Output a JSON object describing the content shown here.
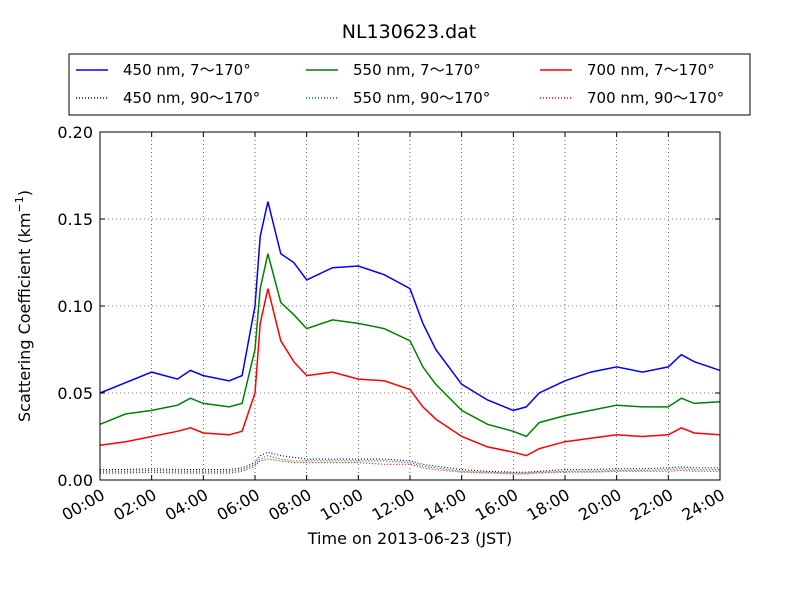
{
  "chart_data": {
    "type": "line",
    "title": "NL130623.dat",
    "xlabel": "Time on 2013-06-23 (JST)",
    "ylabel": "Scattering Coefficient (km",
    "ylabel_sup": "−1",
    "ylabel_close": ")",
    "xlim": [
      "00:00",
      "24:00"
    ],
    "ylim": [
      0.0,
      0.2
    ],
    "grid": true,
    "legend_position": "top",
    "x_ticks": [
      "00:00",
      "02:00",
      "04:00",
      "06:00",
      "08:00",
      "10:00",
      "12:00",
      "14:00",
      "16:00",
      "18:00",
      "20:00",
      "22:00",
      "24:00"
    ],
    "y_ticks": [
      "0.00",
      "0.05",
      "0.10",
      "0.15",
      "0.20"
    ],
    "x_hours": [
      0,
      1,
      2,
      3,
      3.5,
      4,
      5,
      5.5,
      6,
      6.2,
      6.5,
      7,
      7.5,
      8,
      9,
      10,
      11,
      12,
      12.5,
      13,
      14,
      15,
      16,
      16.5,
      17,
      18,
      19,
      20,
      21,
      22,
      22.5,
      23,
      24
    ],
    "series": [
      {
        "name": "450 nm, 7～170°",
        "color": "#0000ff",
        "style": "solid",
        "values": [
          0.05,
          0.056,
          0.062,
          0.058,
          0.063,
          0.06,
          0.057,
          0.06,
          0.1,
          0.14,
          0.16,
          0.13,
          0.125,
          0.115,
          0.122,
          0.123,
          0.118,
          0.11,
          0.09,
          0.075,
          0.055,
          0.046,
          0.04,
          0.042,
          0.05,
          0.057,
          0.062,
          0.065,
          0.062,
          0.065,
          0.072,
          0.068,
          0.063
        ]
      },
      {
        "name": "550 nm, 7～170°",
        "color": "#008000",
        "style": "solid",
        "values": [
          0.032,
          0.038,
          0.04,
          0.043,
          0.047,
          0.044,
          0.042,
          0.044,
          0.075,
          0.11,
          0.13,
          0.102,
          0.095,
          0.087,
          0.092,
          0.09,
          0.087,
          0.08,
          0.065,
          0.055,
          0.04,
          0.032,
          0.028,
          0.025,
          0.033,
          0.037,
          0.04,
          0.043,
          0.042,
          0.042,
          0.047,
          0.044,
          0.045
        ]
      },
      {
        "name": "700 nm, 7～170°",
        "color": "#ff0000",
        "style": "solid",
        "values": [
          0.02,
          0.022,
          0.025,
          0.028,
          0.03,
          0.027,
          0.026,
          0.028,
          0.05,
          0.09,
          0.11,
          0.08,
          0.068,
          0.06,
          0.062,
          0.058,
          0.057,
          0.052,
          0.042,
          0.035,
          0.025,
          0.019,
          0.016,
          0.014,
          0.018,
          0.022,
          0.024,
          0.026,
          0.025,
          0.026,
          0.03,
          0.027,
          0.026
        ]
      },
      {
        "name": "450 nm, 90～170°",
        "color": "#0000ff",
        "style": "dotted",
        "values": [
          0.006,
          0.006,
          0.0065,
          0.006,
          0.006,
          0.006,
          0.006,
          0.007,
          0.01,
          0.014,
          0.016,
          0.014,
          0.013,
          0.012,
          0.012,
          0.012,
          0.012,
          0.011,
          0.009,
          0.008,
          0.006,
          0.005,
          0.0045,
          0.0045,
          0.005,
          0.006,
          0.006,
          0.0065,
          0.0065,
          0.007,
          0.0075,
          0.007,
          0.007
        ]
      },
      {
        "name": "550 nm, 90～170°",
        "color": "#008000",
        "style": "dotted",
        "values": [
          0.005,
          0.005,
          0.0055,
          0.005,
          0.005,
          0.005,
          0.005,
          0.006,
          0.009,
          0.012,
          0.014,
          0.012,
          0.011,
          0.011,
          0.011,
          0.011,
          0.011,
          0.01,
          0.008,
          0.007,
          0.005,
          0.0045,
          0.004,
          0.004,
          0.0045,
          0.005,
          0.005,
          0.0055,
          0.0055,
          0.006,
          0.0065,
          0.006,
          0.006
        ]
      },
      {
        "name": "700 nm, 90～170°",
        "color": "#ff0000",
        "style": "dotted",
        "values": [
          0.004,
          0.004,
          0.0045,
          0.004,
          0.004,
          0.004,
          0.004,
          0.005,
          0.008,
          0.011,
          0.012,
          0.011,
          0.01,
          0.01,
          0.01,
          0.01,
          0.009,
          0.009,
          0.007,
          0.006,
          0.0045,
          0.004,
          0.0035,
          0.0035,
          0.004,
          0.0045,
          0.0045,
          0.005,
          0.005,
          0.005,
          0.0055,
          0.005,
          0.005
        ]
      }
    ]
  }
}
